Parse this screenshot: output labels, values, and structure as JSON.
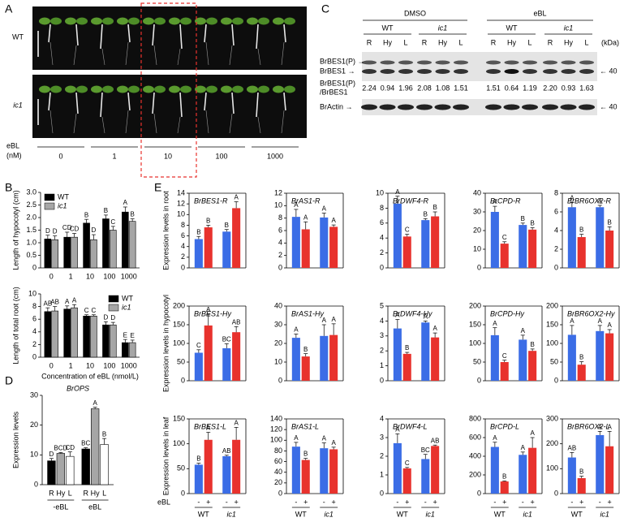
{
  "panel_labels": [
    "A",
    "B",
    "C",
    "D",
    "E"
  ],
  "photos": {
    "genotypes": [
      "WT",
      "ic1"
    ],
    "doses": [
      "0",
      "1",
      "10",
      "100",
      "1000"
    ],
    "treatment": "eBL",
    "unit": "(nM)"
  },
  "blot": {
    "treatments": [
      "DMSO",
      "eBL"
    ],
    "genotypes": [
      "WT",
      "ic1",
      "WT",
      "ic1"
    ],
    "lanes": [
      "R",
      "Hy",
      "L",
      "R",
      "Hy",
      "L",
      "R",
      "Hy",
      "L",
      "R",
      "Hy",
      "L"
    ],
    "unit": "(kDa)",
    "bands": [
      "BrBES1(P) →",
      "BrBES1 →"
    ],
    "ratio_label": [
      "BrBES1(P)",
      "/BrBES1"
    ],
    "ratios": [
      "2.24",
      "0.94",
      "1.96",
      "2.08",
      "1.08",
      "1.51",
      "1.51",
      "0.64",
      "1.19",
      "2.20",
      "0.93",
      "1.63"
    ],
    "actin": "BrActin →",
    "markers": [
      "← 40",
      "← 40"
    ]
  },
  "e_axis": {
    "treatment": "eBL",
    "signs": [
      "-",
      "+",
      "-",
      "+"
    ],
    "groups": [
      "WT",
      "ic1"
    ],
    "row_labels": [
      "Expression levels in root",
      "Expression levels in hypocotyl",
      "Expression levels in leaf"
    ]
  },
  "chart_data": [
    {
      "type": "bar",
      "ylabel": "Length of hypocotyl (cm)",
      "categories": [
        "0",
        "1",
        "10",
        "100",
        "1000"
      ],
      "legend": "upper left",
      "series": [
        {
          "name": "WT",
          "color": "#000000",
          "values": [
            1.15,
            1.22,
            1.78,
            1.95,
            2.22
          ],
          "errors": [
            0.15,
            0.2,
            0.15,
            0.15,
            0.2
          ],
          "letters": [
            "D",
            "CD",
            "B",
            "B",
            "A"
          ]
        },
        {
          "name": "ic1",
          "color": "#a6a6a6",
          "values": [
            1.12,
            1.22,
            1.12,
            1.5,
            1.85
          ],
          "errors": [
            0.15,
            0.15,
            0.2,
            0.15,
            0.1
          ],
          "letters": [
            "D",
            "CD",
            "D",
            "C",
            "B"
          ]
        }
      ],
      "ylim": [
        0,
        3
      ],
      "yticks": [
        0,
        0.5,
        {
          "value": 1,
          "label": "1.0"
        },
        1.5,
        {
          "value": 2,
          "label": "2.0"
        },
        2.5,
        {
          "value": 3,
          "label": "3.0"
        }
      ]
    },
    {
      "type": "bar",
      "ylabel": "Length of total root (cm)",
      "xlabel": "Concentration of eBL (nmol/L)",
      "categories": [
        "0",
        "1",
        "10",
        "100",
        "1000"
      ],
      "legend": "upper right",
      "series": [
        {
          "name": "WT",
          "color": "#000000",
          "values": [
            7.2,
            7.6,
            6.5,
            5.1,
            2.3
          ],
          "errors": [
            0.6,
            0.5,
            0.2,
            0.5,
            0.5
          ],
          "letters": [
            "AB",
            "A",
            "C",
            "D",
            "E"
          ]
        },
        {
          "name": "ic1",
          "color": "#a6a6a6",
          "values": [
            7.3,
            7.8,
            6.5,
            5.1,
            2.3
          ],
          "errors": [
            0.7,
            0.5,
            0.2,
            0.4,
            0.4
          ],
          "letters": [
            "AB",
            "A",
            "C",
            "D",
            "E"
          ]
        }
      ],
      "ylim": [
        0,
        10
      ],
      "yticks": [
        0,
        2,
        4,
        6,
        8,
        10
      ]
    },
    {
      "type": "bar",
      "title": "BrOPS",
      "ylabel": "Expression levels",
      "categories": [
        "R",
        "Hy",
        "L",
        "R",
        "Hy",
        "L"
      ],
      "groups": [
        "-eBL",
        "eBL"
      ],
      "series": [
        {
          "colors": [
            "#000000",
            "#a6a6a6",
            "#ffffff",
            "#000000",
            "#a6a6a6",
            "#ffffff"
          ],
          "values": [
            8,
            10.5,
            9.5,
            12,
            25.5,
            13.5
          ],
          "errors": [
            0.8,
            0.3,
            1.5,
            0.4,
            0.5,
            2
          ],
          "letters": [
            "D",
            "BCD",
            "CD",
            "BC",
            "A",
            "B"
          ]
        }
      ],
      "ylim": [
        0,
        30
      ],
      "yticks": [
        0,
        10,
        20,
        30
      ]
    },
    {
      "type": "bar",
      "title": "BrBES1-R",
      "series": [
        {
          "colors": [
            "#3b6de6",
            "#e8322d",
            "#3b6de6",
            "#e8322d"
          ],
          "values": [
            5.4,
            7.6,
            6.8,
            11.2
          ],
          "errors": [
            0.5,
            0.4,
            0.4,
            1.2
          ],
          "letters": [
            "B",
            "B",
            "B",
            "A"
          ]
        }
      ],
      "ylim": [
        0,
        14
      ],
      "yticks": [
        0,
        2,
        4,
        6,
        8,
        10,
        12,
        14
      ]
    },
    {
      "type": "bar",
      "title": "BrAS1-R",
      "series": [
        {
          "colors": [
            "#3b6de6",
            "#e8322d",
            "#3b6de6",
            "#e8322d"
          ],
          "values": [
            8.2,
            6.2,
            8.1,
            6.6
          ],
          "errors": [
            1.2,
            1.2,
            0.7,
            0.3
          ],
          "letters": [
            "A",
            "A",
            "A",
            "A"
          ]
        }
      ],
      "ylim": [
        0,
        12
      ],
      "yticks": [
        0,
        2,
        4,
        6,
        8,
        10,
        12
      ]
    },
    {
      "type": "bar",
      "title": "BrDWF4-R",
      "series": [
        {
          "colors": [
            "#3b6de6",
            "#e8322d",
            "#3b6de6",
            "#e8322d"
          ],
          "values": [
            8.6,
            4.2,
            6.4,
            6.9
          ],
          "errors": [
            1.0,
            0.3,
            0.2,
            0.6
          ],
          "letters": [
            "A",
            "C",
            "B",
            "B"
          ]
        }
      ],
      "ylim": [
        0,
        10
      ],
      "yticks": [
        0,
        2,
        4,
        6,
        8,
        10
      ]
    },
    {
      "type": "bar",
      "title": "BrCPD-R",
      "series": [
        {
          "colors": [
            "#3b6de6",
            "#e8322d",
            "#3b6de6",
            "#e8322d"
          ],
          "values": [
            30,
            13,
            23,
            20.5
          ],
          "errors": [
            3,
            1,
            1,
            1
          ],
          "letters": [
            "A",
            "C",
            "B",
            "B"
          ]
        }
      ],
      "ylim": [
        0,
        40
      ],
      "yticks": [
        0,
        10,
        20,
        30,
        40
      ]
    },
    {
      "type": "bar",
      "title": "BrBR6OX2-R",
      "series": [
        {
          "colors": [
            "#3b6de6",
            "#e8322d",
            "#3b6de6",
            "#e8322d"
          ],
          "values": [
            6.5,
            3.3,
            6.5,
            4.0
          ],
          "errors": [
            0.5,
            0.3,
            0.2,
            0.4
          ],
          "letters": [
            "A",
            "B",
            "A",
            "B"
          ]
        }
      ],
      "ylim": [
        0,
        8
      ],
      "yticks": [
        0,
        2,
        4,
        6,
        8
      ]
    },
    {
      "type": "bar",
      "title": "BrBES1-Hy",
      "series": [
        {
          "colors": [
            "#3b6de6",
            "#e8322d",
            "#3b6de6",
            "#e8322d"
          ],
          "values": [
            75,
            148,
            87,
            130
          ],
          "errors": [
            8,
            30,
            12,
            15
          ],
          "letters": [
            "C",
            "A",
            "BC",
            "AB"
          ]
        }
      ],
      "ylim": [
        0,
        200
      ],
      "yticks": [
        0,
        50,
        100,
        150,
        200
      ]
    },
    {
      "type": "bar",
      "title": "BrAS1-Hy",
      "series": [
        {
          "colors": [
            "#3b6de6",
            "#e8322d",
            "#3b6de6",
            "#e8322d"
          ],
          "values": [
            23,
            13,
            24,
            24.5
          ],
          "errors": [
            2,
            1.5,
            6,
            6
          ],
          "letters": [
            "A",
            "B",
            "A",
            "A"
          ]
        }
      ],
      "ylim": [
        0,
        40
      ],
      "yticks": [
        0,
        10,
        20,
        30,
        40
      ]
    },
    {
      "type": "bar",
      "title": "BrDWF4-Hy",
      "series": [
        {
          "colors": [
            "#3b6de6",
            "#e8322d",
            "#3b6de6",
            "#e8322d"
          ],
          "values": [
            3.5,
            1.8,
            3.9,
            2.9
          ],
          "errors": [
            0.6,
            0.1,
            0.1,
            0.3
          ],
          "letters": [
            "A",
            "B",
            "A",
            "A"
          ]
        }
      ],
      "ylim": [
        0,
        5
      ],
      "yticks": [
        0,
        1,
        2,
        3,
        4,
        5
      ]
    },
    {
      "type": "bar",
      "title": "BrCPD-Hy",
      "series": [
        {
          "colors": [
            "#3b6de6",
            "#e8322d",
            "#3b6de6",
            "#e8322d"
          ],
          "values": [
            122,
            50,
            110,
            80
          ],
          "errors": [
            20,
            5,
            12,
            5
          ],
          "letters": [
            "A",
            "C",
            "A",
            "B"
          ]
        }
      ],
      "ylim": [
        0,
        200
      ],
      "yticks": [
        0,
        50,
        100,
        150,
        200
      ]
    },
    {
      "type": "bar",
      "title": "BrBR6OX2-Hy",
      "series": [
        {
          "colors": [
            "#3b6de6",
            "#e8322d",
            "#3b6de6",
            "#e8322d"
          ],
          "values": [
            123,
            43,
            133,
            127
          ],
          "errors": [
            25,
            8,
            15,
            10
          ],
          "letters": [
            "A",
            "B",
            "A",
            "A"
          ]
        }
      ],
      "ylim": [
        0,
        200
      ],
      "yticks": [
        0,
        50,
        100,
        150,
        200
      ]
    },
    {
      "type": "bar",
      "title": "BrBES1-L",
      "series": [
        {
          "colors": [
            "#3b6de6",
            "#e8322d",
            "#3b6de6",
            "#e8322d"
          ],
          "values": [
            58,
            108,
            75,
            108
          ],
          "errors": [
            3,
            15,
            2,
            25
          ],
          "letters": [
            "B",
            "A",
            "AB",
            "A"
          ]
        }
      ],
      "ylim": [
        0,
        150
      ],
      "yticks": [
        0,
        50,
        100,
        150
      ]
    },
    {
      "type": "bar",
      "title": "BrAS1-L",
      "series": [
        {
          "colors": [
            "#3b6de6",
            "#e8322d",
            "#3b6de6",
            "#e8322d"
          ],
          "values": [
            88,
            63,
            85,
            83
          ],
          "errors": [
            8,
            3,
            10,
            4
          ],
          "letters": [
            "A",
            "B",
            "A",
            "A"
          ]
        }
      ],
      "ylim": [
        0,
        140
      ],
      "yticks": [
        0,
        20,
        40,
        60,
        80,
        100,
        120,
        140
      ]
    },
    {
      "type": "bar",
      "title": "BrDWF4-L",
      "series": [
        {
          "colors": [
            "#3b6de6",
            "#e8322d",
            "#3b6de6",
            "#e8322d"
          ],
          "values": [
            2.7,
            1.35,
            1.85,
            2.55
          ],
          "errors": [
            0.5,
            0.05,
            0.25,
            0.05
          ],
          "letters": [
            "A",
            "C",
            "BC",
            "AB"
          ]
        }
      ],
      "ylim": [
        0,
        4
      ],
      "yticks": [
        0,
        1,
        2,
        3,
        4
      ]
    },
    {
      "type": "bar",
      "title": "BrCPD-L",
      "series": [
        {
          "colors": [
            "#3b6de6",
            "#e8322d",
            "#3b6de6",
            "#e8322d"
          ],
          "values": [
            500,
            130,
            415,
            490
          ],
          "errors": [
            50,
            5,
            30,
            110
          ],
          "letters": [
            "A",
            "B",
            "A",
            "A"
          ]
        }
      ],
      "ylim": [
        0,
        800
      ],
      "yticks": [
        0,
        200,
        400,
        600,
        800
      ]
    },
    {
      "type": "bar",
      "title": "BrBR6OX2-L",
      "series": [
        {
          "colors": [
            "#3b6de6",
            "#e8322d",
            "#3b6de6",
            "#e8322d"
          ],
          "values": [
            145,
            62,
            235,
            190
          ],
          "errors": [
            20,
            8,
            15,
            60
          ],
          "letters": [
            "AB",
            "B",
            "A",
            "A"
          ]
        }
      ],
      "ylim": [
        0,
        300
      ],
      "yticks": [
        0,
        100,
        200,
        300
      ]
    }
  ]
}
